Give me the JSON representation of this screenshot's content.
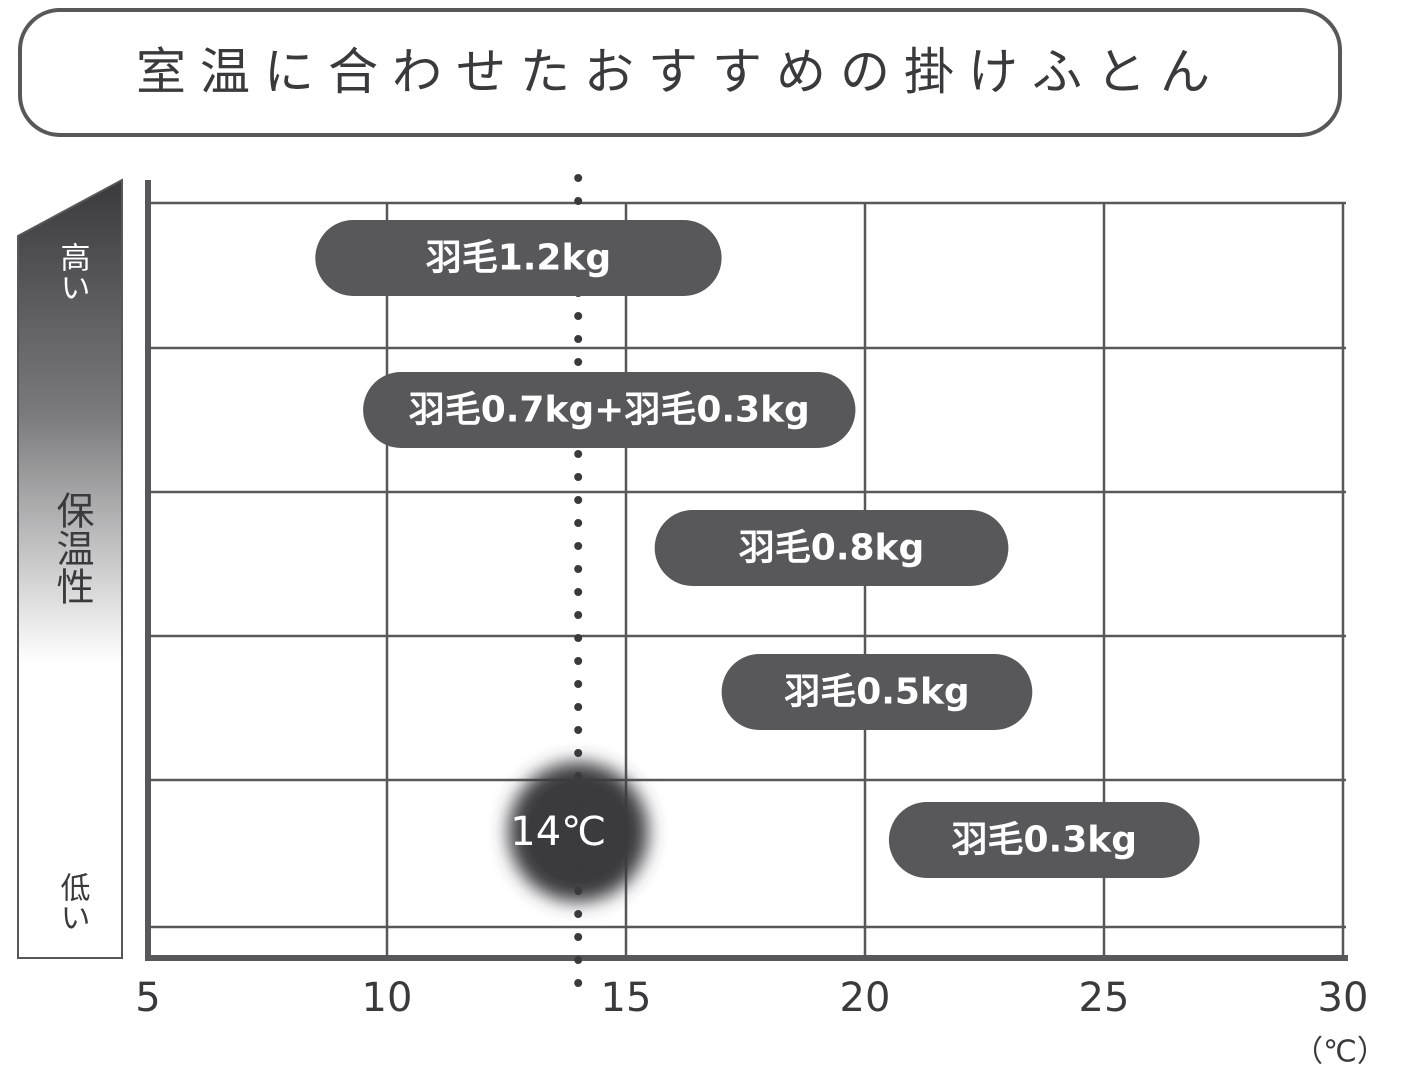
{
  "title": "室温に合わせたおすすめの掛けふとん",
  "chart_data": {
    "type": "range-bar",
    "categories": [
      "羽毛1.2kg",
      "羽毛0.7kg+羽毛0.3kg",
      "羽毛0.8kg",
      "羽毛0.5kg",
      "羽毛0.3kg"
    ],
    "values": [
      [
        8.5,
        17
      ],
      [
        9.5,
        19.8
      ],
      [
        15.6,
        23
      ],
      [
        17,
        23.5
      ],
      [
        20.5,
        27
      ]
    ],
    "color": "#58585a",
    "xlim": [
      5,
      30
    ],
    "xticks": [
      5,
      10,
      15,
      20,
      25,
      30
    ],
    "x_unit": "（℃）",
    "y_label": "保温性",
    "y_high": "高い",
    "y_low": "低い",
    "marker": {
      "value": 14,
      "label": "14℃"
    },
    "grid": true
  }
}
